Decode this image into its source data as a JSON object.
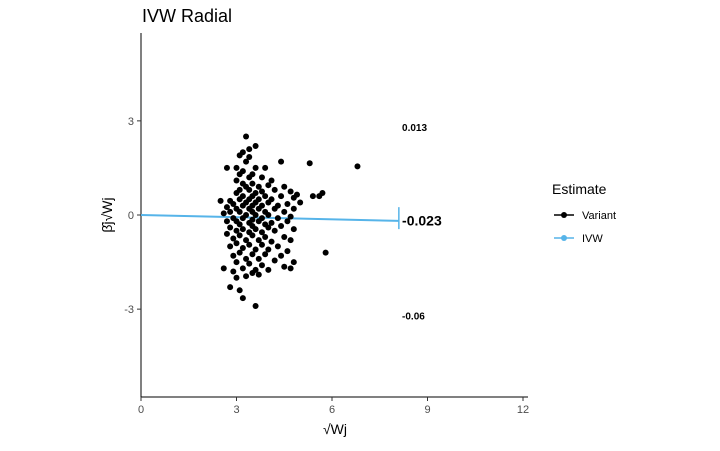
{
  "chart_data": {
    "type": "scatter",
    "title": "IVW Radial",
    "xlabel": "√Wj",
    "ylabel": "β̂j√Wj",
    "xlim": [
      0,
      12
    ],
    "ylim": [
      -5.8,
      5.8
    ],
    "x_ticks": [
      0,
      3,
      6,
      9,
      12
    ],
    "x_tick_labels": [
      "0",
      "3",
      "6",
      "9",
      "12"
    ],
    "y_ticks": [
      -3,
      0,
      3
    ],
    "y_tick_labels": [
      "-3",
      "0",
      "3"
    ],
    "grid": false,
    "legend": {
      "title": "Estimate",
      "position": "right",
      "entries": [
        {
          "label": "Variant",
          "color": "#000000"
        },
        {
          "label": "IVW",
          "color": "#56b4e9"
        }
      ]
    },
    "ivw_line": {
      "slope": -0.023,
      "x": [
        0,
        8.1
      ],
      "color": "#56b4e9"
    },
    "ivw_arc": {
      "x": 8.1,
      "y_range": [
        -0.45,
        0.25
      ]
    },
    "annotations": [
      {
        "text": "0.013",
        "x": 8.2,
        "y": 2.8,
        "size": "small"
      },
      {
        "text": "-0.023",
        "x": 8.2,
        "y": -0.2,
        "size": "large"
      },
      {
        "text": "-0.06",
        "x": 8.2,
        "y": -3.2,
        "size": "small"
      }
    ],
    "points": [
      [
        3.3,
        2.5
      ],
      [
        3.6,
        2.2
      ],
      [
        3.4,
        2.1
      ],
      [
        3.2,
        2.0
      ],
      [
        3.1,
        1.9
      ],
      [
        3.4,
        1.85
      ],
      [
        3.3,
        1.7
      ],
      [
        4.4,
        1.7
      ],
      [
        5.3,
        1.65
      ],
      [
        6.8,
        1.55
      ],
      [
        2.7,
        1.5
      ],
      [
        3.0,
        1.5
      ],
      [
        3.6,
        1.5
      ],
      [
        3.9,
        1.5
      ],
      [
        3.2,
        1.4
      ],
      [
        3.5,
        1.3
      ],
      [
        3.1,
        1.3
      ],
      [
        3.4,
        1.2
      ],
      [
        3.8,
        1.2
      ],
      [
        4.1,
        1.1
      ],
      [
        3.0,
        1.1
      ],
      [
        3.2,
        1.0
      ],
      [
        3.5,
        1.0
      ],
      [
        3.3,
        0.9
      ],
      [
        3.7,
        0.9
      ],
      [
        4.0,
        0.95
      ],
      [
        4.5,
        0.9
      ],
      [
        3.1,
        0.8
      ],
      [
        3.4,
        0.8
      ],
      [
        3.8,
        0.75
      ],
      [
        4.2,
        0.8
      ],
      [
        4.7,
        0.75
      ],
      [
        5.7,
        0.7
      ],
      [
        3.0,
        0.7
      ],
      [
        3.6,
        0.7
      ],
      [
        4.9,
        0.65
      ],
      [
        5.4,
        0.6
      ],
      [
        5.6,
        0.6
      ],
      [
        3.2,
        0.6
      ],
      [
        3.5,
        0.6
      ],
      [
        3.9,
        0.6
      ],
      [
        4.4,
        0.6
      ],
      [
        4.8,
        0.55
      ],
      [
        3.1,
        0.5
      ],
      [
        3.4,
        0.5
      ],
      [
        3.7,
        0.5
      ],
      [
        4.1,
        0.5
      ],
      [
        2.5,
        0.45
      ],
      [
        2.8,
        0.45
      ],
      [
        3.3,
        0.4
      ],
      [
        3.6,
        0.4
      ],
      [
        4.0,
        0.4
      ],
      [
        4.6,
        0.35
      ],
      [
        5.0,
        0.4
      ],
      [
        2.9,
        0.35
      ],
      [
        3.2,
        0.3
      ],
      [
        3.5,
        0.3
      ],
      [
        3.8,
        0.3
      ],
      [
        4.3,
        0.3
      ],
      [
        2.7,
        0.25
      ],
      [
        3.0,
        0.2
      ],
      [
        3.4,
        0.2
      ],
      [
        3.7,
        0.2
      ],
      [
        4.2,
        0.2
      ],
      [
        4.8,
        0.2
      ],
      [
        2.8,
        0.1
      ],
      [
        3.1,
        0.1
      ],
      [
        3.5,
        0.1
      ],
      [
        3.9,
        0.1
      ],
      [
        4.5,
        0.1
      ],
      [
        2.6,
        0.05
      ],
      [
        3.3,
        0.0
      ],
      [
        3.6,
        0.0
      ],
      [
        4.0,
        0.0
      ],
      [
        4.7,
        -0.05
      ],
      [
        2.9,
        -0.1
      ],
      [
        3.2,
        -0.1
      ],
      [
        3.5,
        -0.15
      ],
      [
        3.8,
        -0.1
      ],
      [
        4.3,
        -0.1
      ],
      [
        2.7,
        -0.2
      ],
      [
        3.0,
        -0.2
      ],
      [
        3.4,
        -0.25
      ],
      [
        3.7,
        -0.2
      ],
      [
        4.1,
        -0.25
      ],
      [
        4.6,
        -0.2
      ],
      [
        3.1,
        -0.3
      ],
      [
        3.5,
        -0.35
      ],
      [
        3.9,
        -0.3
      ],
      [
        4.4,
        -0.35
      ],
      [
        2.8,
        -0.4
      ],
      [
        3.2,
        -0.45
      ],
      [
        3.6,
        -0.45
      ],
      [
        4.0,
        -0.4
      ],
      [
        4.8,
        -0.45
      ],
      [
        3.0,
        -0.5
      ],
      [
        3.4,
        -0.55
      ],
      [
        3.8,
        -0.55
      ],
      [
        4.2,
        -0.5
      ],
      [
        2.7,
        -0.6
      ],
      [
        3.1,
        -0.65
      ],
      [
        3.5,
        -0.65
      ],
      [
        3.9,
        -0.7
      ],
      [
        4.5,
        -0.7
      ],
      [
        2.9,
        -0.75
      ],
      [
        3.3,
        -0.8
      ],
      [
        3.7,
        -0.8
      ],
      [
        4.1,
        -0.85
      ],
      [
        4.7,
        -0.8
      ],
      [
        3.0,
        -0.9
      ],
      [
        3.4,
        -0.95
      ],
      [
        3.8,
        -0.95
      ],
      [
        4.3,
        -1.0
      ],
      [
        2.8,
        -1.0
      ],
      [
        3.2,
        -1.05
      ],
      [
        3.6,
        -1.1
      ],
      [
        4.0,
        -1.1
      ],
      [
        4.6,
        -1.15
      ],
      [
        3.1,
        -1.2
      ],
      [
        3.5,
        -1.25
      ],
      [
        3.9,
        -1.25
      ],
      [
        4.4,
        -1.3
      ],
      [
        5.8,
        -1.2
      ],
      [
        2.9,
        -1.3
      ],
      [
        3.3,
        -1.4
      ],
      [
        3.7,
        -1.4
      ],
      [
        4.2,
        -1.45
      ],
      [
        4.8,
        -1.5
      ],
      [
        3.0,
        -1.5
      ],
      [
        3.4,
        -1.55
      ],
      [
        3.8,
        -1.6
      ],
      [
        4.5,
        -1.65
      ],
      [
        2.6,
        -1.7
      ],
      [
        3.2,
        -1.7
      ],
      [
        3.6,
        -1.75
      ],
      [
        4.0,
        -1.75
      ],
      [
        4.7,
        -1.7
      ],
      [
        2.9,
        -1.8
      ],
      [
        3.5,
        -1.85
      ],
      [
        3.7,
        -1.9
      ],
      [
        3.3,
        -1.95
      ],
      [
        3.0,
        -2.0
      ],
      [
        2.8,
        -2.3
      ],
      [
        3.1,
        -2.4
      ],
      [
        3.2,
        -2.65
      ],
      [
        3.6,
        -2.9
      ]
    ]
  }
}
